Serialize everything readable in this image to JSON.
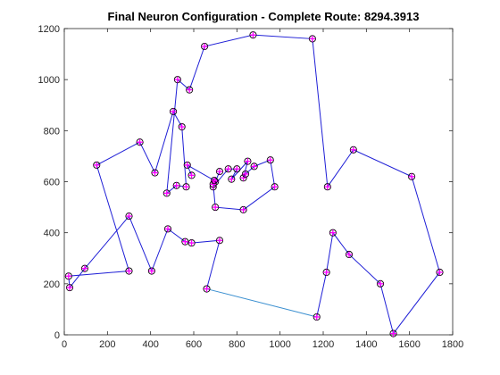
{
  "chart_data": {
    "type": "line",
    "title": "Final Neuron Configuration - Complete Route: 8294.3913",
    "xlabel": "",
    "ylabel": "",
    "xlim": [
      0,
      1800
    ],
    "ylim": [
      0,
      1200
    ],
    "xticks": [
      0,
      200,
      400,
      600,
      800,
      1000,
      1200,
      1400,
      1600,
      1800
    ],
    "yticks": [
      0,
      200,
      400,
      600,
      800,
      1000,
      1200
    ],
    "grid": false,
    "legend": "none",
    "colors": {
      "route": "#1f1fd6",
      "closing_segment": "#3a8fd0",
      "marker_edge": "#000000",
      "marker_face": "#ff00ff"
    },
    "route": {
      "x": [
        660,
        720,
        590,
        560,
        480,
        405,
        300,
        95,
        25,
        20,
        300,
        150,
        350,
        420,
        505,
        545,
        565,
        520,
        475,
        525,
        580,
        650,
        875,
        1150,
        1220,
        1340,
        1610,
        1740,
        1525,
        1465,
        1320,
        1245,
        1215,
        1170
      ],
      "y": [
        180,
        370,
        360,
        365,
        415,
        250,
        465,
        260,
        185,
        230,
        250,
        665,
        755,
        635,
        875,
        815,
        580,
        585,
        555,
        1000,
        960,
        1130,
        1175,
        1160,
        580,
        725,
        620,
        245,
        5,
        200,
        315,
        400,
        245,
        70
      ]
    },
    "center_cluster": {
      "x": [
        720,
        700,
        690,
        760,
        800,
        775,
        850,
        830,
        840,
        880,
        955,
        975,
        830,
        700,
        690,
        695,
        570,
        590
      ],
      "y": [
        640,
        600,
        580,
        650,
        650,
        610,
        680,
        615,
        630,
        660,
        685,
        580,
        490,
        500,
        590,
        605,
        665,
        625
      ]
    },
    "closing_segment": {
      "x": [
        1170,
        660
      ],
      "y": [
        70,
        180
      ]
    }
  }
}
